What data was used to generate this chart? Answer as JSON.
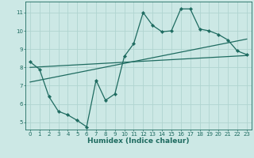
{
  "title": "",
  "xlabel": "Humidex (Indice chaleur)",
  "bg_color": "#cce8e5",
  "line_color": "#1e6b60",
  "grid_color": "#b0d4d0",
  "xlim": [
    -0.5,
    23.5
  ],
  "ylim": [
    4.6,
    11.6
  ],
  "xticks": [
    0,
    1,
    2,
    3,
    4,
    5,
    6,
    7,
    8,
    9,
    10,
    11,
    12,
    13,
    14,
    15,
    16,
    17,
    18,
    19,
    20,
    21,
    22,
    23
  ],
  "yticks": [
    5,
    6,
    7,
    8,
    9,
    10,
    11
  ],
  "zigzag_x": [
    0,
    1,
    2,
    3,
    4,
    5,
    6,
    7,
    8,
    9,
    10,
    11,
    12,
    13,
    14,
    15,
    16,
    17,
    18,
    19,
    20,
    21,
    22,
    23
  ],
  "zigzag_y": [
    8.3,
    7.9,
    6.4,
    5.6,
    5.4,
    5.1,
    4.75,
    7.3,
    6.2,
    6.55,
    8.6,
    9.3,
    11.0,
    10.3,
    9.95,
    10.0,
    11.2,
    11.2,
    10.1,
    10.0,
    9.8,
    9.5,
    8.9,
    8.7
  ],
  "line1_x": [
    0,
    23
  ],
  "line1_y": [
    8.0,
    8.65
  ],
  "line2_x": [
    0,
    23
  ],
  "line2_y": [
    7.2,
    9.55
  ],
  "marker_size": 2.2,
  "linewidth": 0.9,
  "tick_fontsize": 5.0,
  "xlabel_fontsize": 6.5
}
